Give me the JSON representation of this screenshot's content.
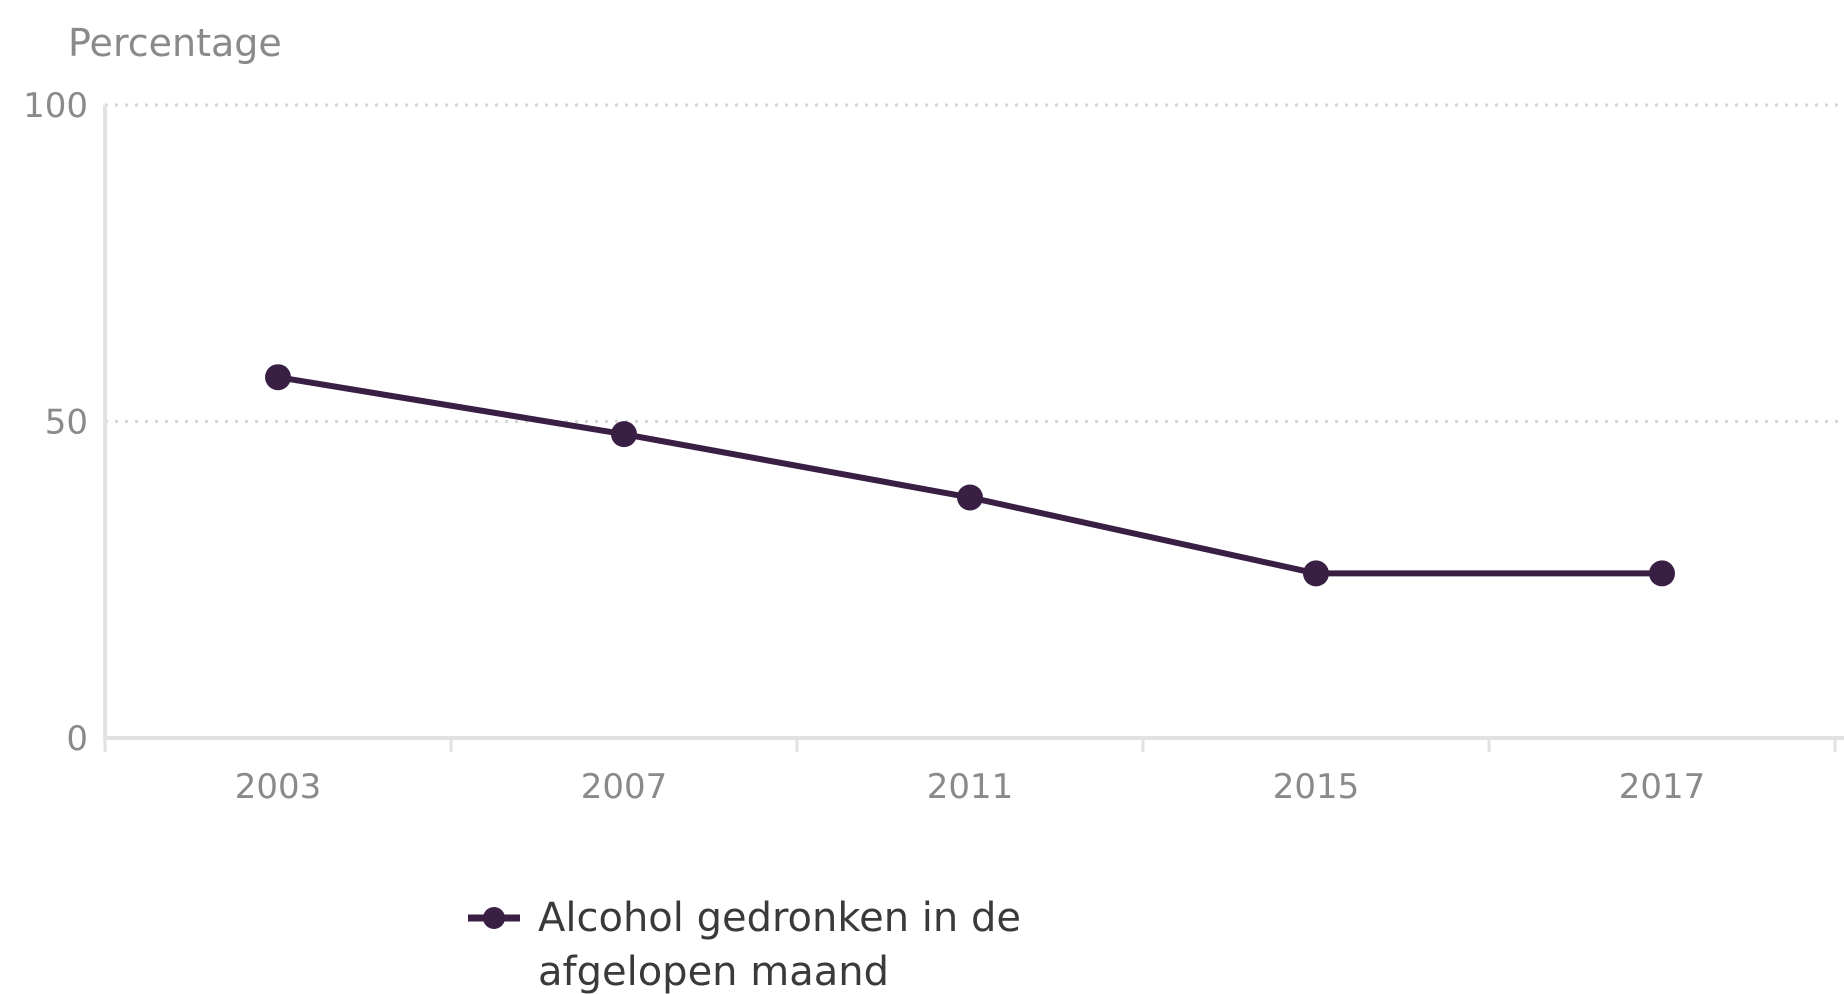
{
  "chart_data": {
    "type": "line",
    "ylabel": "Percentage",
    "ylim": [
      0,
      100
    ],
    "yticks": [
      "0",
      "50",
      "100"
    ],
    "categories": [
      "2003",
      "2007",
      "2011",
      "2015",
      "2017"
    ],
    "series": [
      {
        "name": "Alcohol gedronken in de afgelopen maand",
        "legend_lines": [
          "Alcohol gedronken in de",
          "afgelopen maand"
        ],
        "values": [
          57,
          48,
          38,
          26,
          26
        ],
        "color": "#3a1f45"
      }
    ],
    "grid": "horizontal dotted",
    "legend_position": "bottom"
  }
}
